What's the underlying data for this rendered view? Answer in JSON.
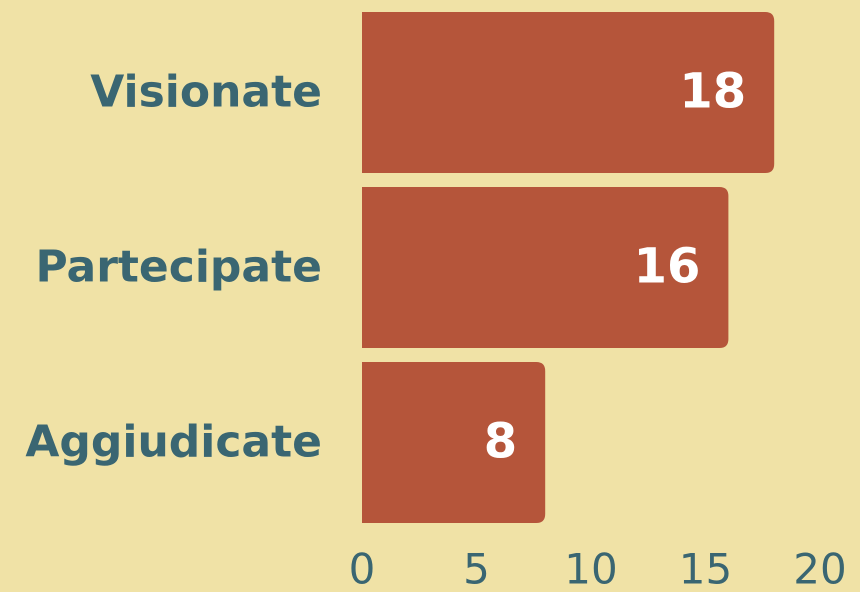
{
  "chart_data": {
    "type": "bar",
    "orientation": "horizontal",
    "categories": [
      "Visionate",
      "Partecipate",
      "Aggiudicate"
    ],
    "values": [
      18,
      16,
      8
    ],
    "color": "#b5553a",
    "xlim": [
      0,
      20
    ],
    "xticks": [
      0,
      5,
      10,
      15,
      20
    ],
    "grid": false
  }
}
